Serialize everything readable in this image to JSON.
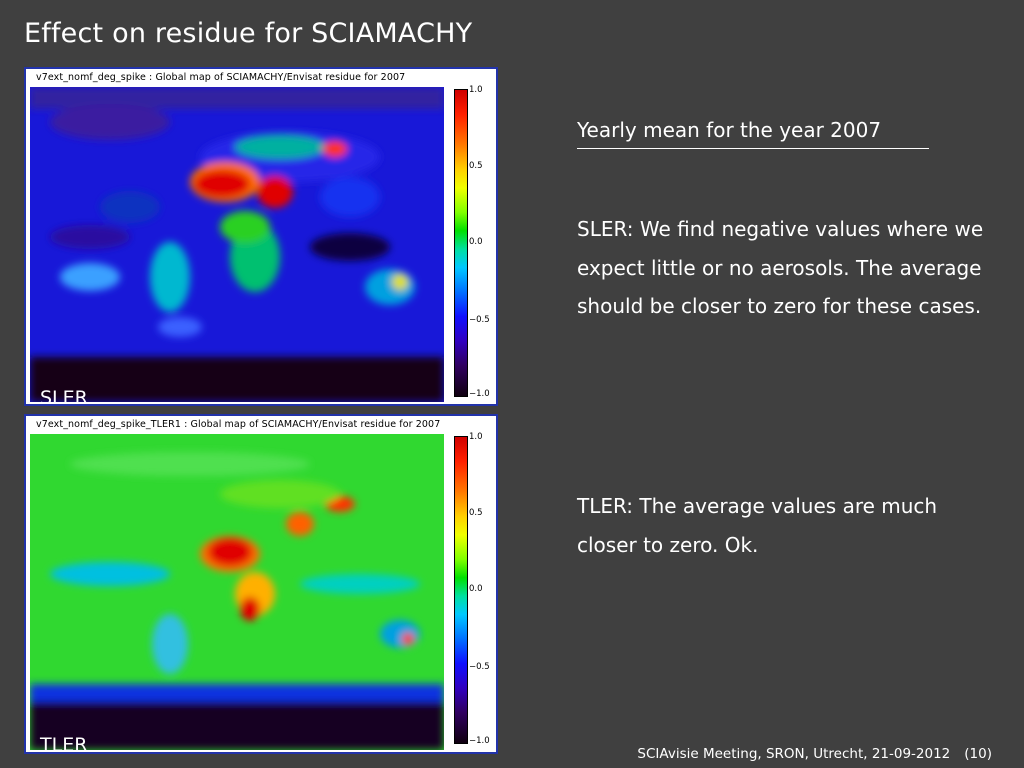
{
  "slide": {
    "title": "Effect on residue for SCIAMACHY",
    "heading": "Yearly mean for the year 2007",
    "sler_text": "SLER: We find negative values where we expect little or no aerosols. The average should be closer to zero for these cases.",
    "tler_text": "TLER: The average values are much closer to zero. Ok.",
    "footer": "SCIAvisie Meeting, SRON, Utrecht, 21-09-2012",
    "page_number": "(10)"
  },
  "maps": [
    {
      "caption": "v7ext_nomf_deg_spike : Global map of SCIAMACHY/Envisat residue for 2007",
      "label": "SLER",
      "colorbar_ticks": [
        "1.0",
        "0.5",
        "0.0",
        "−0.5",
        "−1.0"
      ],
      "background_color": "#1818d8"
    },
    {
      "caption": "v7ext_nomf_deg_spike_TLER1 : Global map of SCIAMACHY/Envisat residue for 2007",
      "label": "TLER",
      "colorbar_ticks": [
        "1.0",
        "0.5",
        "0.0",
        "−0.5",
        "−1.0"
      ],
      "background_color": "#30d830"
    }
  ],
  "colors": {
    "background": "#404040",
    "panel_border": "#2233aa",
    "text": "#ffffff"
  }
}
